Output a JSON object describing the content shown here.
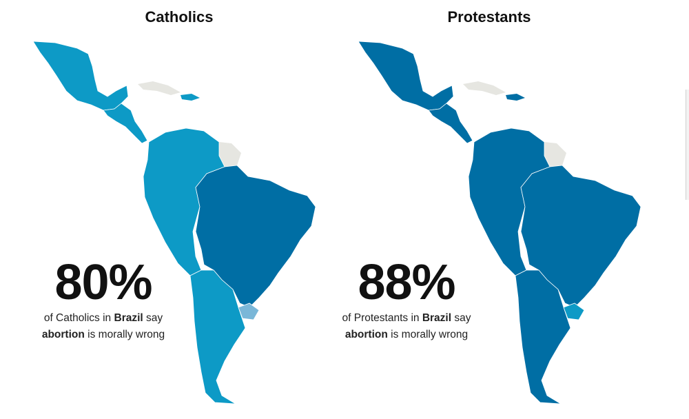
{
  "panels": [
    {
      "title": "Catholics",
      "percent": "80%",
      "caption": {
        "prefix": "of Catholics in",
        "country": "Brazil",
        "verb": "say",
        "topic": "abortion",
        "suffix": "is morally wrong"
      },
      "colors": {
        "region": "#0d9ac6",
        "brazil": "#006ea4",
        "uruguay": "#7ab7d8",
        "other": "#e6e6e1"
      }
    },
    {
      "title": "Protestants",
      "percent": "88%",
      "caption": {
        "prefix": "of Protestants in",
        "country": "Brazil",
        "verb": "say",
        "topic": "abortion",
        "suffix": "is morally wrong"
      },
      "colors": {
        "region": "#006ea4",
        "brazil": "#006ea4",
        "uruguay": "#0d9ac6",
        "other": "#e6e6e1"
      }
    }
  ]
}
